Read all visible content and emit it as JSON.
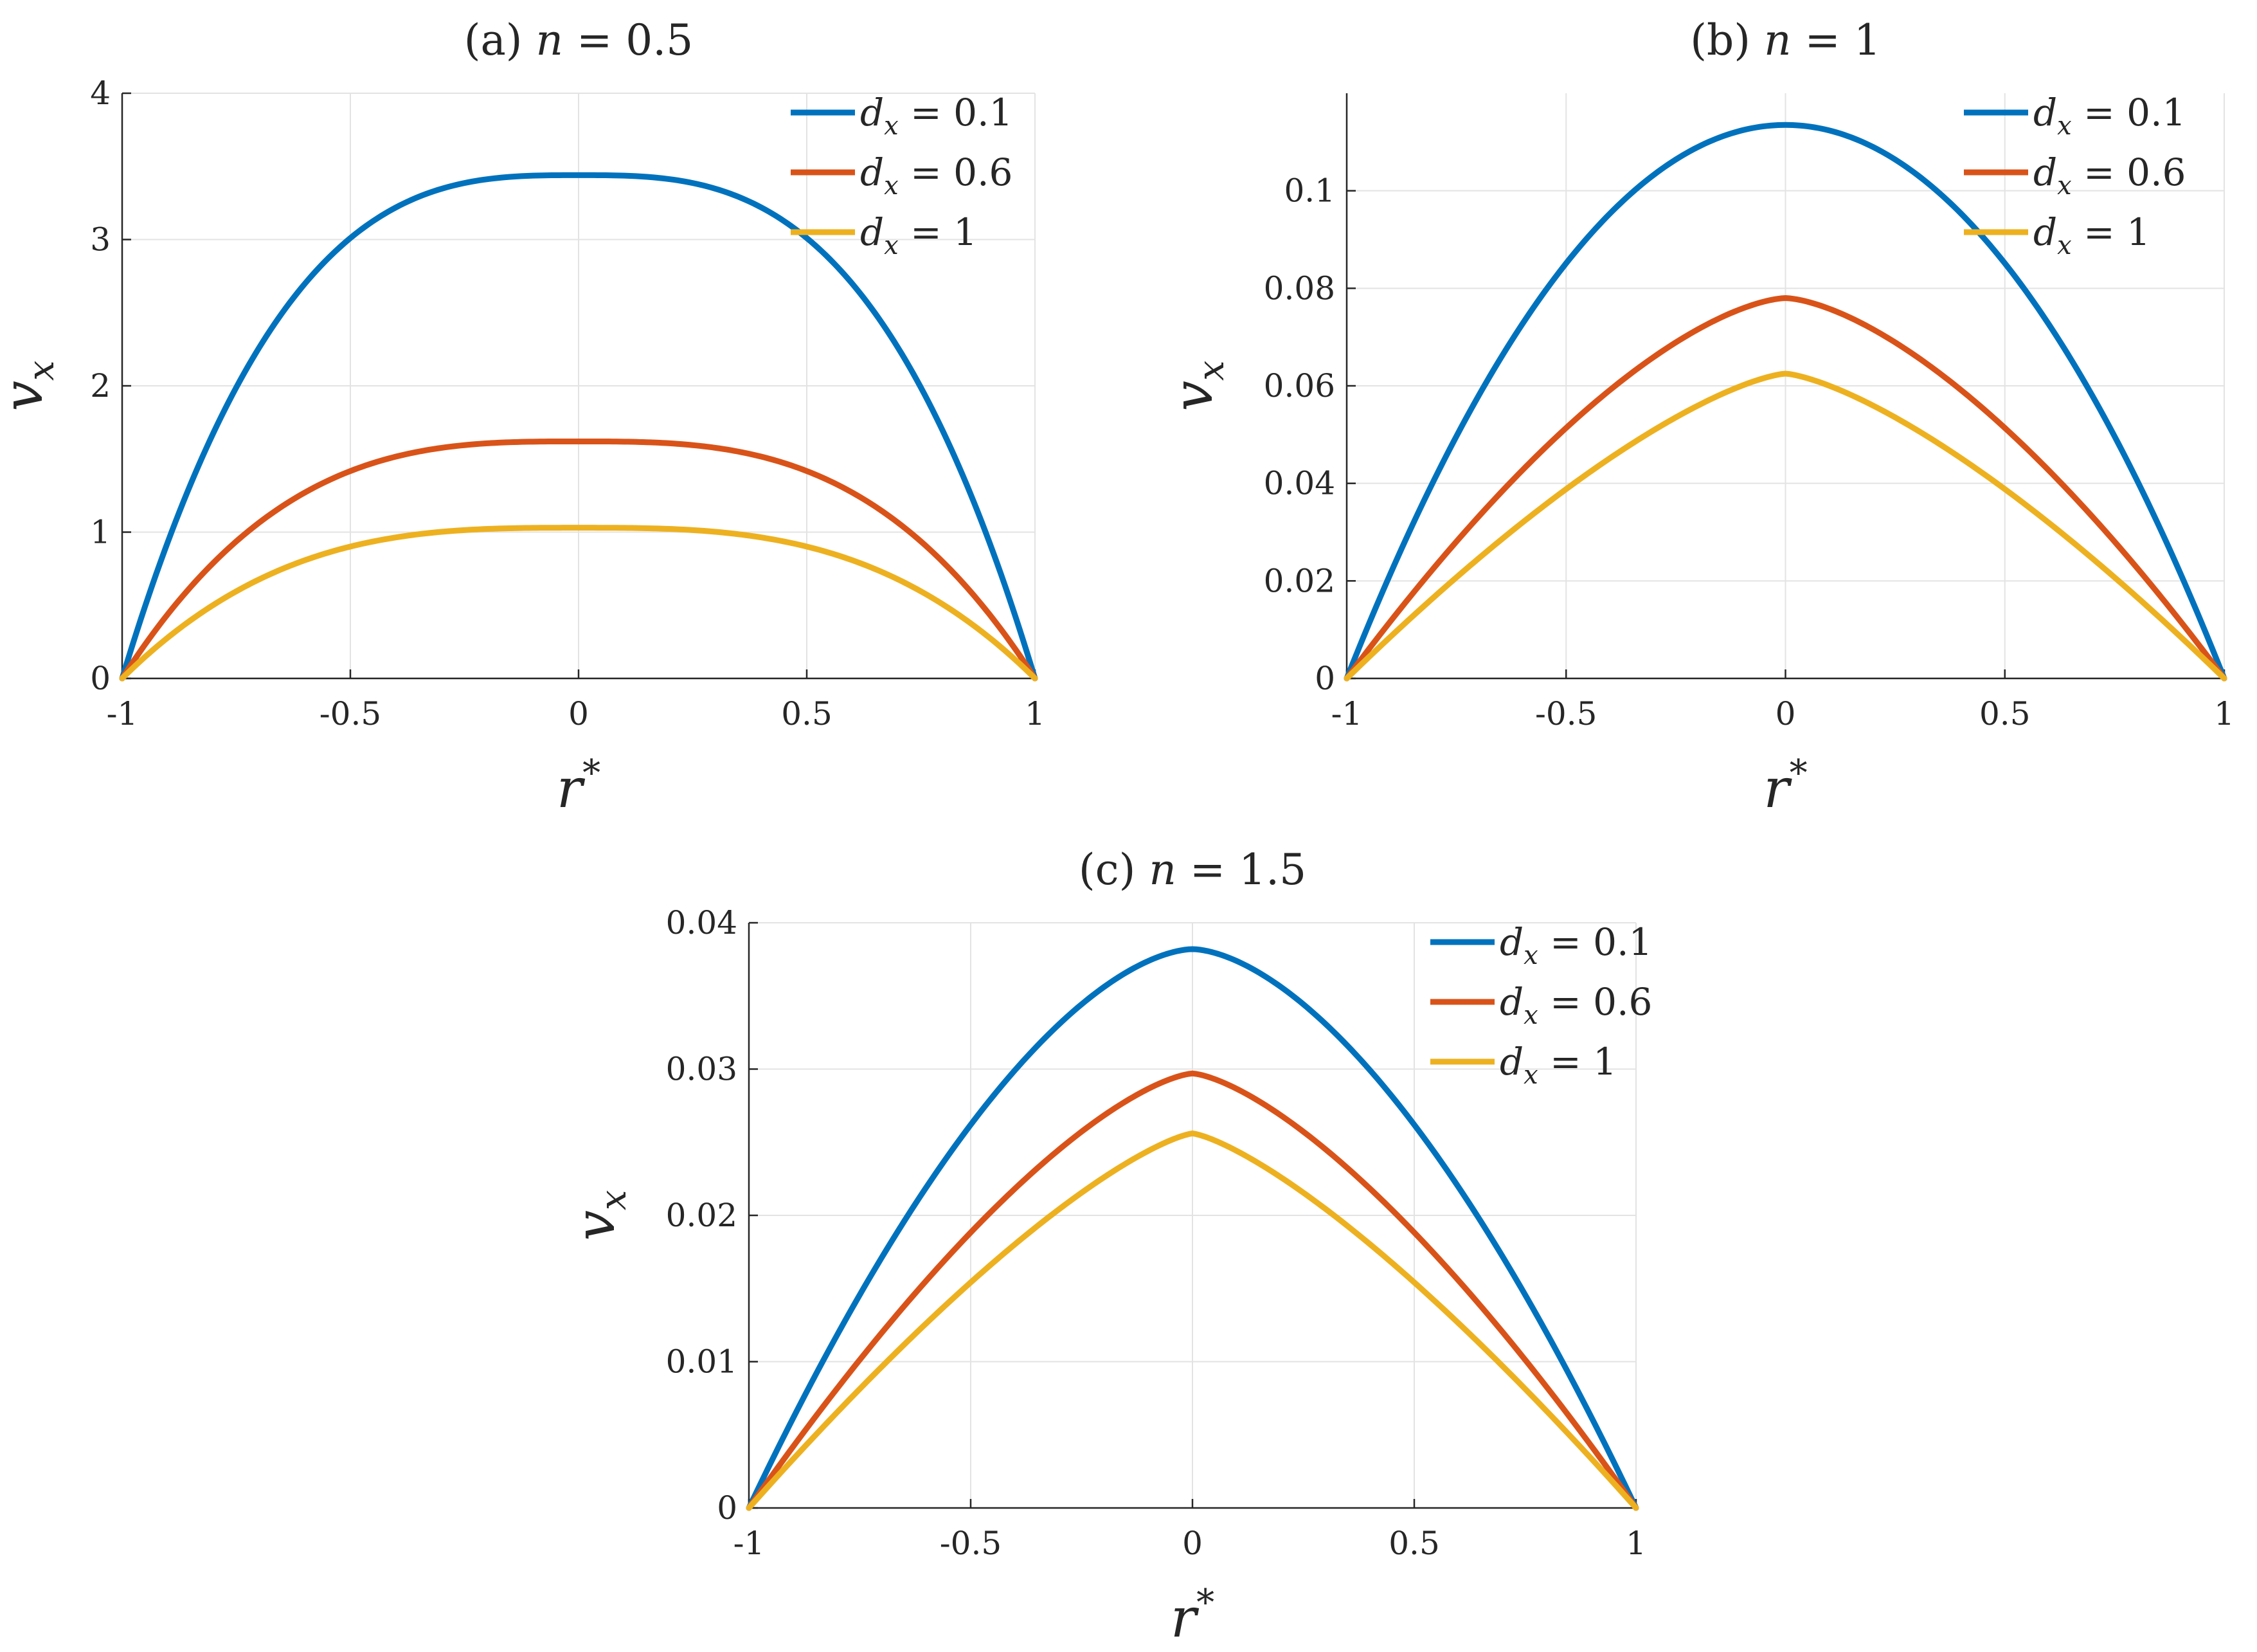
{
  "chart_data": [
    {
      "type": "line",
      "title": "(a) n = 0.5",
      "title_prefix": "(a)",
      "title_math": "n = 0.5",
      "xlabel": "r*",
      "ylabel": "v_x",
      "xlim": [
        -1,
        1
      ],
      "ylim": [
        0,
        4
      ],
      "xticks": [
        -1,
        -0.5,
        0,
        0.5,
        1
      ],
      "xtick_labels": [
        "-1",
        "-0.5",
        "0",
        "0.5",
        "1"
      ],
      "yticks": [
        0,
        1,
        2,
        3,
        4
      ],
      "ytick_labels": [
        "0",
        "1",
        "2",
        "3",
        "4"
      ],
      "grid": true,
      "legend_position": "top-right",
      "series": [
        {
          "name": "d_x = 0.1",
          "legend_math": "= 0.1",
          "color": "#0072BD",
          "peak": 3.44,
          "exponent": 3
        },
        {
          "name": "d_x = 0.6",
          "legend_math": "= 0.6",
          "color": "#D95319",
          "peak": 1.62,
          "exponent": 3
        },
        {
          "name": "d_x = 1",
          "legend_math": "= 1",
          "color": "#EDB120",
          "peak": 1.03,
          "exponent": 3
        }
      ]
    },
    {
      "type": "line",
      "title": "(b) n = 1",
      "title_prefix": "(b)",
      "title_math": "n = 1",
      "xlabel": "r*",
      "ylabel": "v_x",
      "xlim": [
        -1,
        1
      ],
      "ylim": [
        0,
        0.12
      ],
      "xticks": [
        -1,
        -0.5,
        0,
        0.5,
        1
      ],
      "xtick_labels": [
        "-1",
        "-0.5",
        "0",
        "0.5",
        "1"
      ],
      "yticks": [
        0,
        0.02,
        0.04,
        0.06,
        0.08,
        0.1
      ],
      "ytick_labels": [
        "0",
        "0.02",
        "0.04",
        "0.06",
        "0.08",
        "0.1"
      ],
      "grid": true,
      "legend_position": "top-right",
      "series": [
        {
          "name": "d_x = 0.1",
          "legend_math": "= 0.1",
          "color": "#0072BD",
          "peak": 0.1135,
          "exponent": 2
        },
        {
          "name": "d_x = 0.6",
          "legend_math": "= 0.6",
          "color": "#D95319",
          "peak": 0.078,
          "exponent": 1.55
        },
        {
          "name": "d_x = 1",
          "legend_math": "= 1",
          "color": "#EDB120",
          "peak": 0.0625,
          "exponent": 1.4
        }
      ]
    },
    {
      "type": "line",
      "title": "(c) n = 1.5",
      "title_prefix": "(c)",
      "title_math": "n = 1.5",
      "xlabel": "r*",
      "ylabel": "v_x",
      "xlim": [
        -1,
        1
      ],
      "ylim": [
        0,
        0.04
      ],
      "xticks": [
        -1,
        -0.5,
        0,
        0.5,
        1
      ],
      "xtick_labels": [
        "-1",
        "-0.5",
        "0",
        "0.5",
        "1"
      ],
      "yticks": [
        0,
        0.01,
        0.02,
        0.03,
        0.04
      ],
      "ytick_labels": [
        "0",
        "0.01",
        "0.02",
        "0.03",
        "0.04"
      ],
      "grid": true,
      "legend_position": "top-right",
      "series": [
        {
          "name": "d_x = 0.1",
          "legend_math": "= 0.1",
          "color": "#0072BD",
          "peak": 0.0382,
          "exponent": 1.67
        },
        {
          "name": "d_x = 0.6",
          "legend_math": "= 0.6",
          "color": "#D95319",
          "peak": 0.0297,
          "exponent": 1.45
        },
        {
          "name": "d_x = 1",
          "legend_math": "= 1",
          "color": "#EDB120",
          "peak": 0.0256,
          "exponent": 1.33
        }
      ]
    }
  ]
}
